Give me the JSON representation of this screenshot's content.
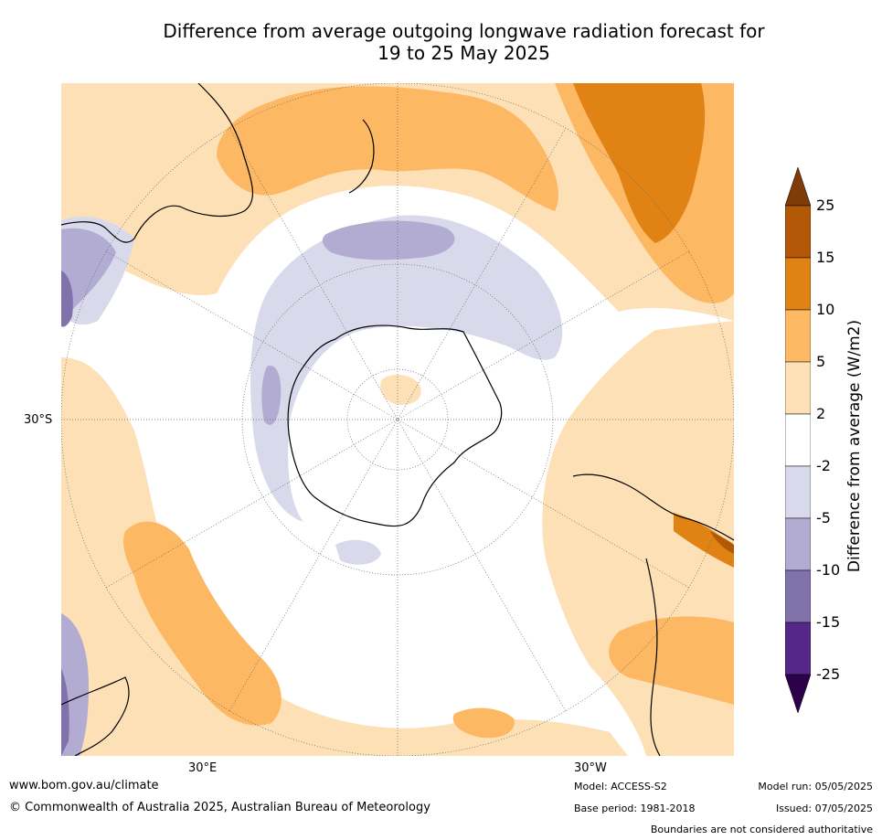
{
  "title": {
    "line1": "Difference from average outgoing longwave radiation forecast for",
    "line2": "19 to 25 May 2025"
  },
  "map": {
    "projection": "south-polar-stereographic",
    "lat_label": "30°S",
    "lon_labels": {
      "east": "30°E",
      "west": "30°W"
    }
  },
  "legend": {
    "title": "Difference from average (W/m2)",
    "extend": "both",
    "ticks": [
      "25",
      "15",
      "10",
      "5",
      "2",
      "-2",
      "-5",
      "-10",
      "-15",
      "-25"
    ],
    "bins": [
      {
        "range": "above 25",
        "color": "#7f3b08"
      },
      {
        "range": "15 to 25",
        "color": "#b35806"
      },
      {
        "range": "10 to 15",
        "color": "#e08214"
      },
      {
        "range": "5 to 10",
        "color": "#fdb863"
      },
      {
        "range": "2 to 5",
        "color": "#fee0b6"
      },
      {
        "range": "-2 to 2",
        "color": "#ffffff"
      },
      {
        "range": "-5 to -2",
        "color": "#d8daeb"
      },
      {
        "range": "-10 to -5",
        "color": "#b2abd2"
      },
      {
        "range": "-15 to -10",
        "color": "#8073ac"
      },
      {
        "range": "-25 to -15",
        "color": "#542788"
      },
      {
        "range": "below -25",
        "color": "#2d004b"
      }
    ]
  },
  "footer": {
    "website": "www.bom.gov.au/climate",
    "copyright": "© Commonwealth of Australia 2025, Australian Bureau of Meteorology",
    "model": "Model: ACCESS-S2",
    "base_period": "Base period: 1981-2018",
    "model_run": "Model run: 05/05/2025",
    "issued": "Issued: 07/05/2025",
    "disclaimer": "Boundaries are not considered authoritative"
  }
}
